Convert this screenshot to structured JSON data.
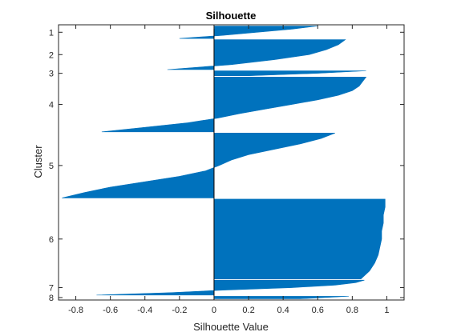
{
  "chart_data": {
    "type": "area",
    "title": "Silhouette",
    "xlabel": "Silhouette Value",
    "ylabel": "Cluster",
    "xlim": [
      -0.9,
      1.1
    ],
    "xticks": [
      -0.8,
      -0.6,
      -0.4,
      -0.2,
      0,
      0.2,
      0.4,
      0.6,
      0.8,
      1
    ],
    "xtick_labels": [
      "-0.8",
      "-0.6",
      "-0.4",
      "-0.2",
      "0",
      "0.2",
      "0.4",
      "0.6",
      "0.8",
      "1"
    ],
    "grid": false,
    "fill_color": "#0072BD",
    "clusters": [
      {
        "label": "1",
        "size": 5,
        "profile": [
          0.6,
          0.45,
          0.25,
          0.05,
          -0.2
        ]
      },
      {
        "label": "2",
        "size": 12,
        "profile": [
          0.76,
          0.72,
          0.65,
          0.55,
          0.35,
          0.1,
          -0.27
        ]
      },
      {
        "label": "3",
        "size": 2,
        "profile": [
          0.88,
          0.6,
          0.2
        ]
      },
      {
        "label": "4",
        "size": 22,
        "profile": [
          0.88,
          0.86,
          0.84,
          0.8,
          0.72,
          0.6,
          0.45,
          0.3,
          0.15,
          0.02,
          -0.15,
          -0.4,
          -0.65
        ]
      },
      {
        "label": "5",
        "size": 26,
        "profile": [
          0.7,
          0.62,
          0.5,
          0.35,
          0.2,
          0.1,
          0.03,
          -0.05,
          -0.2,
          -0.4,
          -0.6,
          -0.75,
          -0.88
        ]
      },
      {
        "label": "6",
        "size": 32,
        "profile": [
          0.99,
          0.99,
          0.98,
          0.98,
          0.97,
          0.97,
          0.96,
          0.95,
          0.93,
          0.9,
          0.85
        ]
      },
      {
        "label": "7",
        "size": 6,
        "profile": [
          0.87,
          0.82,
          0.7,
          0.45,
          0.05,
          -0.25,
          -0.68
        ]
      },
      {
        "label": "8",
        "size": 1,
        "profile": [
          0.78,
          0.5
        ]
      }
    ]
  }
}
